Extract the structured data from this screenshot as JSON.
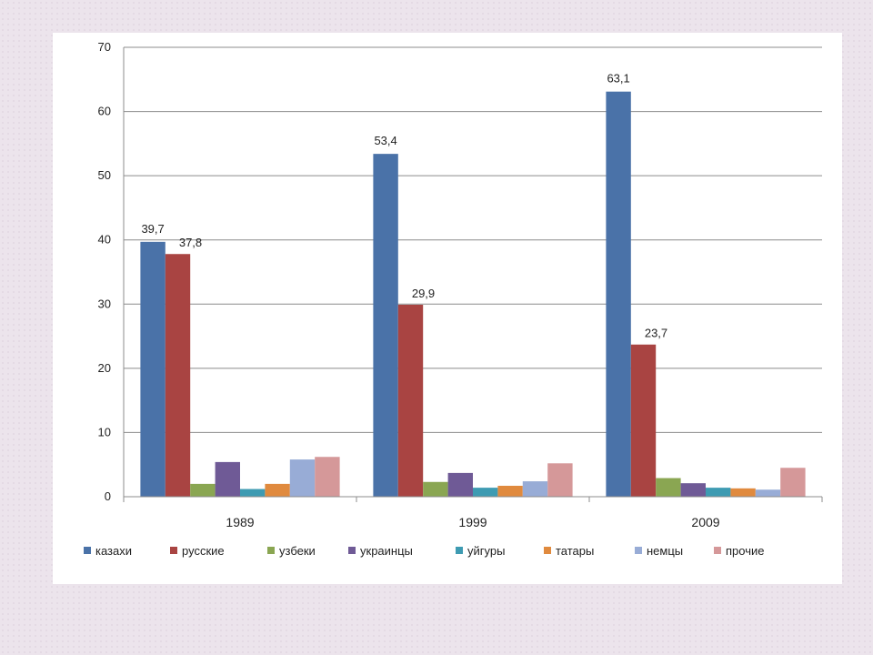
{
  "chart_data": {
    "type": "bar",
    "categories": [
      "1989",
      "1999",
      "2009"
    ],
    "ylim": [
      0,
      70
    ],
    "yticks": [
      0,
      10,
      20,
      30,
      40,
      50,
      60,
      70
    ],
    "grid": true,
    "legend_position": "bottom",
    "series": [
      {
        "name": "казахи",
        "color": "#4a72a8",
        "values": [
          39.7,
          53.4,
          63.1
        ],
        "labels": [
          "39,7",
          "53,4",
          "63,1"
        ]
      },
      {
        "name": "русские",
        "color": "#a94442",
        "values": [
          37.8,
          29.9,
          23.7
        ],
        "labels": [
          "37,8",
          "29,9",
          "23,7"
        ]
      },
      {
        "name": "узбеки",
        "color": "#8aa652",
        "values": [
          2.0,
          2.3,
          2.9
        ]
      },
      {
        "name": "украинцы",
        "color": "#6f5a96",
        "values": [
          5.4,
          3.7,
          2.1
        ]
      },
      {
        "name": "уйгуры",
        "color": "#3e9bb2",
        "values": [
          1.2,
          1.4,
          1.4
        ]
      },
      {
        "name": "татары",
        "color": "#e08a3e",
        "values": [
          2.0,
          1.7,
          1.3
        ]
      },
      {
        "name": "немцы",
        "color": "#98acd6",
        "values": [
          5.8,
          2.4,
          1.1
        ]
      },
      {
        "name": "прочие",
        "color": "#d59899",
        "values": [
          6.2,
          5.2,
          4.5
        ]
      }
    ]
  }
}
